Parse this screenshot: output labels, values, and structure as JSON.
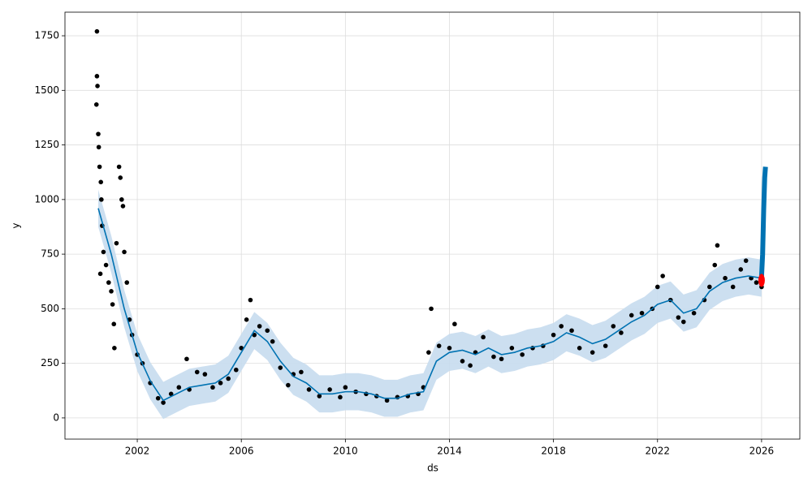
{
  "chart_data": {
    "type": "forecast",
    "x_label": "ds",
    "y_label": "y",
    "xlim": [
      1999.22,
      2027.47
    ],
    "ylim": [
      -97,
      1858
    ],
    "xticks": [
      2002,
      2006,
      2010,
      2014,
      2018,
      2022,
      2026
    ],
    "yticks": [
      0,
      250,
      500,
      750,
      1000,
      1250,
      1500,
      1750
    ],
    "grid": true,
    "actual": {
      "color": "#000000",
      "x": [
        2000.45,
        2000.45,
        2000.47,
        2000.43,
        2000.5,
        2000.52,
        2000.55,
        2000.6,
        2000.62,
        2000.65,
        2000.7,
        2000.58,
        2000.8,
        2000.9,
        2001.0,
        2001.05,
        2001.1,
        2001.12,
        2001.2,
        2001.3,
        2001.35,
        2001.4,
        2001.45,
        2001.5,
        2001.6,
        2001.7,
        2001.8,
        2002.0,
        2002.2,
        2002.5,
        2002.8,
        2003.0,
        2003.3,
        2003.6,
        2003.9,
        2004.0,
        2004.3,
        2004.6,
        2004.9,
        2005.2,
        2005.5,
        2005.8,
        2006.0,
        2006.2,
        2006.35,
        2006.5,
        2006.7,
        2007.0,
        2007.2,
        2007.5,
        2007.8,
        2008.0,
        2008.3,
        2008.6,
        2009.0,
        2009.4,
        2009.8,
        2010.0,
        2010.4,
        2010.8,
        2011.2,
        2011.6,
        2012.0,
        2012.4,
        2012.8,
        2013.0,
        2013.2,
        2013.3,
        2013.6,
        2014.0,
        2014.2,
        2014.5,
        2014.8,
        2015.0,
        2015.3,
        2015.7,
        2016.0,
        2016.4,
        2016.8,
        2017.2,
        2017.6,
        2018.0,
        2018.3,
        2018.7,
        2019.0,
        2019.5,
        2020.0,
        2020.3,
        2020.6,
        2021.0,
        2021.4,
        2021.8,
        2022.0,
        2022.2,
        2022.5,
        2022.8,
        2023.0,
        2023.4,
        2023.8,
        2024.0,
        2024.2,
        2024.3,
        2024.6,
        2024.9,
        2025.2,
        2025.4,
        2025.6,
        2025.8,
        2026.0
      ],
      "values": [
        1770,
        1565,
        1520,
        1435,
        1300,
        1240,
        1150,
        1080,
        1000,
        880,
        760,
        660,
        700,
        620,
        580,
        520,
        430,
        320,
        800,
        1150,
        1100,
        1000,
        970,
        760,
        620,
        450,
        380,
        290,
        250,
        160,
        90,
        70,
        110,
        140,
        270,
        130,
        210,
        200,
        140,
        160,
        180,
        220,
        320,
        450,
        540,
        380,
        420,
        400,
        350,
        230,
        150,
        200,
        210,
        130,
        100,
        130,
        95,
        140,
        120,
        110,
        100,
        80,
        95,
        100,
        110,
        140,
        300,
        500,
        330,
        320,
        430,
        260,
        240,
        300,
        370,
        280,
        270,
        320,
        290,
        320,
        330,
        380,
        420,
        400,
        320,
        300,
        330,
        420,
        390,
        470,
        480,
        500,
        600,
        650,
        540,
        460,
        440,
        480,
        540,
        600,
        700,
        790,
        640,
        600,
        680,
        720,
        640,
        620,
        600
      ]
    },
    "forecast": {
      "color": "#0072b2",
      "band_color": "#c6dcee",
      "x": [
        2000.5,
        2001.0,
        2001.5,
        2002.0,
        2002.5,
        2003.0,
        2003.5,
        2004.0,
        2004.5,
        2005.0,
        2005.5,
        2006.0,
        2006.5,
        2007.0,
        2007.5,
        2008.0,
        2008.5,
        2009.0,
        2009.5,
        2010.0,
        2010.5,
        2011.0,
        2011.5,
        2012.0,
        2012.5,
        2013.0,
        2013.5,
        2014.0,
        2014.5,
        2015.0,
        2015.5,
        2016.0,
        2016.5,
        2017.0,
        2017.5,
        2018.0,
        2018.5,
        2019.0,
        2019.5,
        2020.0,
        2020.5,
        2021.0,
        2021.5,
        2022.0,
        2022.5,
        2023.0,
        2023.5,
        2024.0,
        2024.5,
        2025.0,
        2025.5,
        2026.0
      ],
      "values": [
        960,
        750,
        500,
        300,
        170,
        80,
        110,
        140,
        150,
        160,
        200,
        300,
        400,
        350,
        260,
        190,
        160,
        110,
        110,
        120,
        120,
        110,
        90,
        90,
        110,
        120,
        260,
        300,
        310,
        290,
        320,
        290,
        300,
        320,
        330,
        350,
        390,
        370,
        340,
        360,
        400,
        440,
        470,
        520,
        540,
        480,
        500,
        580,
        620,
        640,
        650,
        640
      ],
      "lower": [
        875,
        665,
        415,
        215,
        85,
        -5,
        25,
        55,
        65,
        75,
        115,
        215,
        315,
        265,
        175,
        105,
        75,
        25,
        25,
        35,
        35,
        25,
        5,
        5,
        25,
        35,
        175,
        215,
        225,
        205,
        235,
        205,
        215,
        235,
        245,
        265,
        305,
        285,
        255,
        275,
        315,
        355,
        385,
        435,
        455,
        395,
        415,
        495,
        535,
        555,
        565,
        555
      ],
      "upper": [
        1045,
        835,
        585,
        385,
        255,
        165,
        195,
        225,
        235,
        245,
        285,
        385,
        485,
        435,
        345,
        275,
        245,
        195,
        195,
        205,
        205,
        195,
        175,
        175,
        195,
        205,
        345,
        385,
        395,
        375,
        405,
        375,
        385,
        405,
        415,
        435,
        475,
        455,
        425,
        445,
        485,
        525,
        555,
        605,
        625,
        565,
        585,
        665,
        705,
        725,
        735,
        725
      ]
    },
    "future": {
      "color": "#0072b2",
      "x": [
        2026.0,
        2026.04,
        2026.08,
        2026.12,
        2026.15
      ],
      "values": [
        650,
        750,
        950,
        1100,
        1150
      ]
    },
    "latest": {
      "color": "#ff0000",
      "x": [
        2026.0
      ],
      "values": [
        630
      ]
    }
  }
}
